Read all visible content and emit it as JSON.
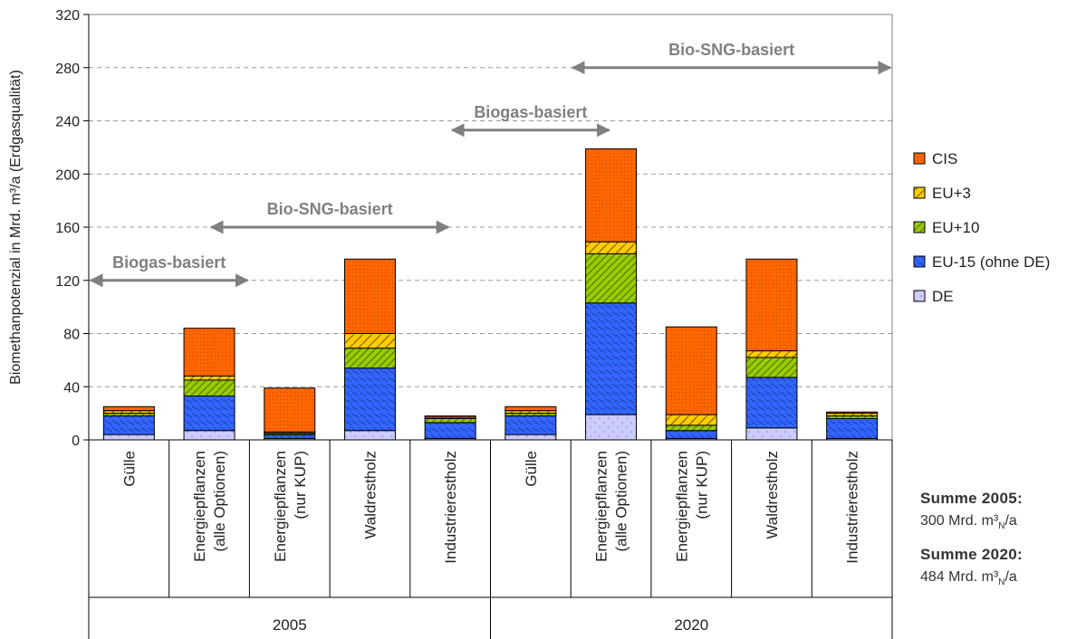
{
  "chart_data": {
    "type": "bar",
    "stacked": true,
    "ylabel": "Biomethanpotenzial in Mrd. m³/a (Erdgasqualität)",
    "ylim": [
      0,
      320
    ],
    "yticks": [
      0,
      40,
      80,
      120,
      160,
      200,
      240,
      280,
      320
    ],
    "grid": true,
    "legend_position": "right",
    "groups": [
      "2005",
      "2020"
    ],
    "categories": [
      "Gülle",
      "Energiepflanzen\n(alle Optionen)",
      "Energiepflanzen\n(nur KUP)",
      "Waldrestholz",
      "Industrierestholz",
      "Gülle",
      "Energiepflanzen\n(alle Optionen)",
      "Energiepflanzen\n(nur KUP)",
      "Waldrestholz",
      "Industrierestholz"
    ],
    "series": [
      {
        "name": "DE",
        "color": "#ccccff",
        "values": [
          4,
          7,
          1,
          7,
          1,
          4,
          19,
          1,
          9,
          1
        ]
      },
      {
        "name": "EU-15 (ohne DE)",
        "color": "#3366ff",
        "values": [
          14,
          26,
          3,
          47,
          12,
          14,
          84,
          6,
          38,
          15
        ]
      },
      {
        "name": "EU+10",
        "color": "#99cc00",
        "values": [
          2,
          12,
          1,
          15,
          3,
          2,
          37,
          4,
          15,
          2
        ]
      },
      {
        "name": "EU+3",
        "color": "#ffcc00",
        "values": [
          2,
          3,
          1,
          11,
          1,
          2,
          9,
          8,
          5,
          2
        ]
      },
      {
        "name": "CIS",
        "color": "#ff6600",
        "values": [
          3,
          36,
          33,
          56,
          1,
          3,
          70,
          66,
          69,
          1
        ]
      }
    ],
    "annotations": [
      {
        "text": "Biogas-basiert",
        "x_from": -0.5,
        "x_to": 1.5,
        "y": 120
      },
      {
        "text": "Bio-SNG-basiert",
        "x_from": 1.0,
        "x_to": 4.0,
        "y": 160
      },
      {
        "text": "Biogas-basiert",
        "x_from": 4.0,
        "x_to": 6.0,
        "y": 233
      },
      {
        "text": "Bio-SNG-basiert",
        "x_from": 5.5,
        "x_to": 9.5,
        "y": 280
      }
    ]
  },
  "summary": {
    "s2005_label": "Summe 2005:",
    "s2005_value": "300 Mrd. m³",
    "s2020_label": "Summe 2020:",
    "s2020_value": "484 Mrd. m³",
    "unit_sub": "N",
    "unit_tail": "/a"
  }
}
